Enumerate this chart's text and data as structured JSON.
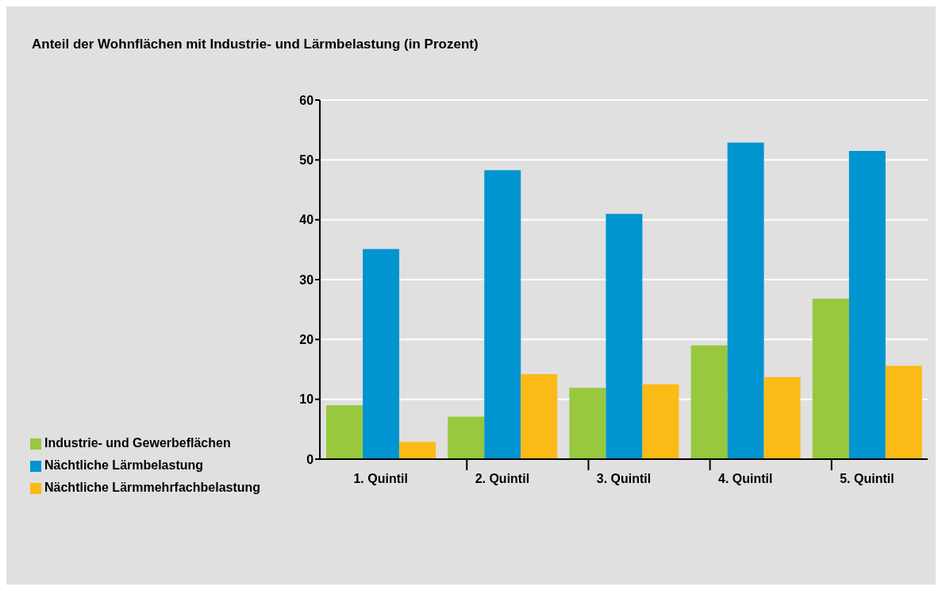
{
  "chart_data": {
    "type": "bar",
    "title": "Anteil der Wohnflächen mit Industrie- und Lärmbelastung (in Prozent)",
    "categories": [
      "1. Quintil",
      "2. Quintil",
      "3. Quintil",
      "4. Quintil",
      "5. Quintil"
    ],
    "series": [
      {
        "name": "Industrie- und Gewerbeflächen",
        "color": "#97c83d",
        "values": [
          9.0,
          7.1,
          11.9,
          19.0,
          26.8
        ]
      },
      {
        "name": "Nächtliche Lärmbelastung",
        "color": "#0094d0",
        "values": [
          35.1,
          48.3,
          41.0,
          52.9,
          51.5
        ]
      },
      {
        "name": "Nächtliche Lärmmehrfachbelastung",
        "color": "#fbba16",
        "values": [
          2.9,
          14.2,
          12.5,
          13.7,
          15.6
        ]
      }
    ],
    "ylim": [
      0,
      60
    ],
    "yticks": [
      0,
      10,
      20,
      30,
      40,
      50,
      60
    ],
    "grid": "y",
    "legend": "bottom left"
  }
}
